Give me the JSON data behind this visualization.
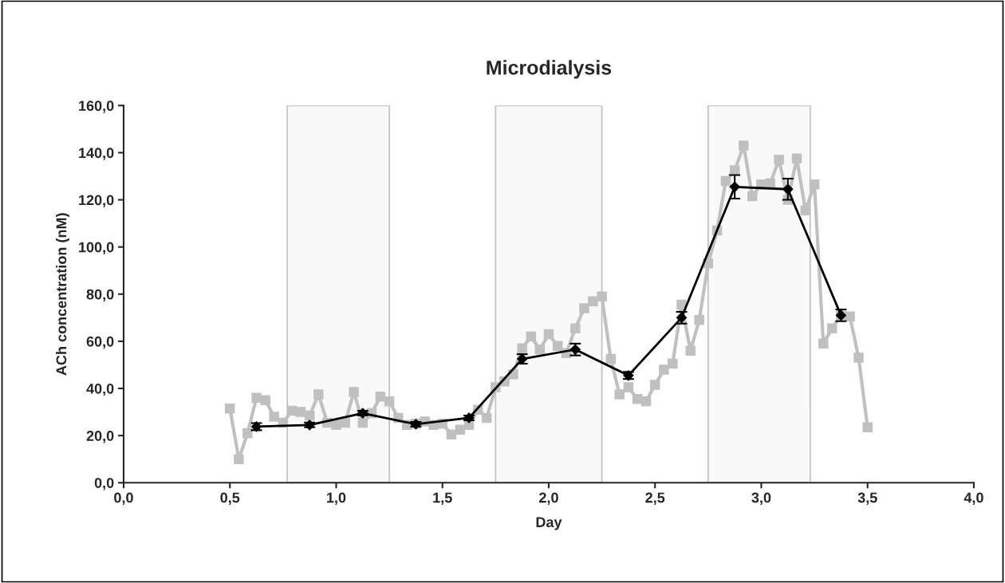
{
  "chart_data": {
    "type": "line",
    "title": "Microdialysis",
    "xlabel": "Day",
    "ylabel": "ACh concentration (nM)",
    "xlim": [
      0,
      4
    ],
    "ylim": [
      0,
      160
    ],
    "xticks": [
      {
        "value": 0,
        "label": "0,0"
      },
      {
        "value": 0.5,
        "label": "0,5"
      },
      {
        "value": 1,
        "label": "1,0"
      },
      {
        "value": 1.5,
        "label": "1,5"
      },
      {
        "value": 2,
        "label": "2,0"
      },
      {
        "value": 2.5,
        "label": "2,5"
      },
      {
        "value": 3,
        "label": "3,0"
      },
      {
        "value": 3.5,
        "label": "3,5"
      },
      {
        "value": 4,
        "label": "4,0"
      }
    ],
    "yticks": [
      {
        "value": 0,
        "label": "0,0"
      },
      {
        "value": 20,
        "label": "20,0"
      },
      {
        "value": 40,
        "label": "40,0"
      },
      {
        "value": 60,
        "label": "60,0"
      },
      {
        "value": 80,
        "label": "80,0"
      },
      {
        "value": 100,
        "label": "100,0"
      },
      {
        "value": 120,
        "label": "120,0"
      },
      {
        "value": 140,
        "label": "140,0"
      },
      {
        "value": 160,
        "label": "160,0"
      }
    ],
    "grid": false,
    "legend": false,
    "bands": [
      {
        "axis": "x",
        "from": 0.77,
        "to": 1.25,
        "color": "#c0c0c0"
      },
      {
        "axis": "x",
        "from": 1.75,
        "to": 2.25,
        "color": "#c0c0c0"
      },
      {
        "axis": "x",
        "from": 2.75,
        "to": 3.23,
        "color": "#c0c0c0"
      }
    ],
    "series": [
      {
        "color": "#c0c0c0",
        "marker": "square",
        "line_style": "solid",
        "x": [
          0.5,
          0.542,
          0.583,
          0.625,
          0.667,
          0.708,
          0.75,
          0.792,
          0.833,
          0.875,
          0.917,
          0.958,
          1.0,
          1.042,
          1.083,
          1.125,
          1.167,
          1.208,
          1.25,
          1.292,
          1.333,
          1.375,
          1.417,
          1.458,
          1.5,
          1.542,
          1.583,
          1.625,
          1.667,
          1.708,
          1.75,
          1.792,
          1.833,
          1.875,
          1.917,
          1.958,
          2.0,
          2.042,
          2.083,
          2.125,
          2.167,
          2.208,
          2.25,
          2.292,
          2.333,
          2.375,
          2.417,
          2.458,
          2.5,
          2.542,
          2.583,
          2.625,
          2.667,
          2.708,
          2.75,
          2.792,
          2.833,
          2.875,
          2.917,
          2.958,
          3.0,
          3.042,
          3.083,
          3.125,
          3.167,
          3.208,
          3.25,
          3.292,
          3.333,
          3.375,
          3.417,
          3.458,
          3.5
        ],
        "values": [
          31.5,
          10,
          21,
          36,
          35,
          28,
          25.5,
          30.5,
          30,
          28.5,
          37.5,
          25.5,
          24.5,
          25.5,
          38.5,
          25.5,
          29.5,
          36.5,
          34.5,
          27.5,
          24.5,
          25,
          26,
          24.5,
          25,
          20.5,
          22.5,
          24.5,
          31,
          27.5,
          40.5,
          43,
          46,
          57,
          62,
          56.5,
          63,
          58,
          55,
          65.5,
          74,
          77,
          79,
          52.5,
          37.5,
          40.5,
          35.5,
          34.5,
          41.5,
          48,
          50.5,
          75.5,
          56,
          69,
          93,
          107,
          128,
          132.5,
          143,
          121.5,
          126.5,
          127,
          137,
          120,
          137.5,
          115.5,
          126.5,
          59,
          65.5,
          71,
          70.5,
          53,
          23.5
        ]
      },
      {
        "color": "#000000",
        "marker": "diamond",
        "line_style": "solid",
        "x": [
          0.625,
          0.875,
          1.125,
          1.375,
          1.625,
          1.875,
          2.125,
          2.375,
          2.625,
          2.875,
          3.125,
          3.375
        ],
        "values": [
          23.8,
          24.5,
          29.5,
          24.8,
          27.5,
          52.5,
          56.5,
          45.5,
          70,
          125.5,
          124.5,
          71
        ],
        "errors": [
          1.5,
          1,
          1,
          1,
          1,
          2,
          2.5,
          1.5,
          2.5,
          5,
          4.5,
          2.5
        ]
      }
    ]
  }
}
